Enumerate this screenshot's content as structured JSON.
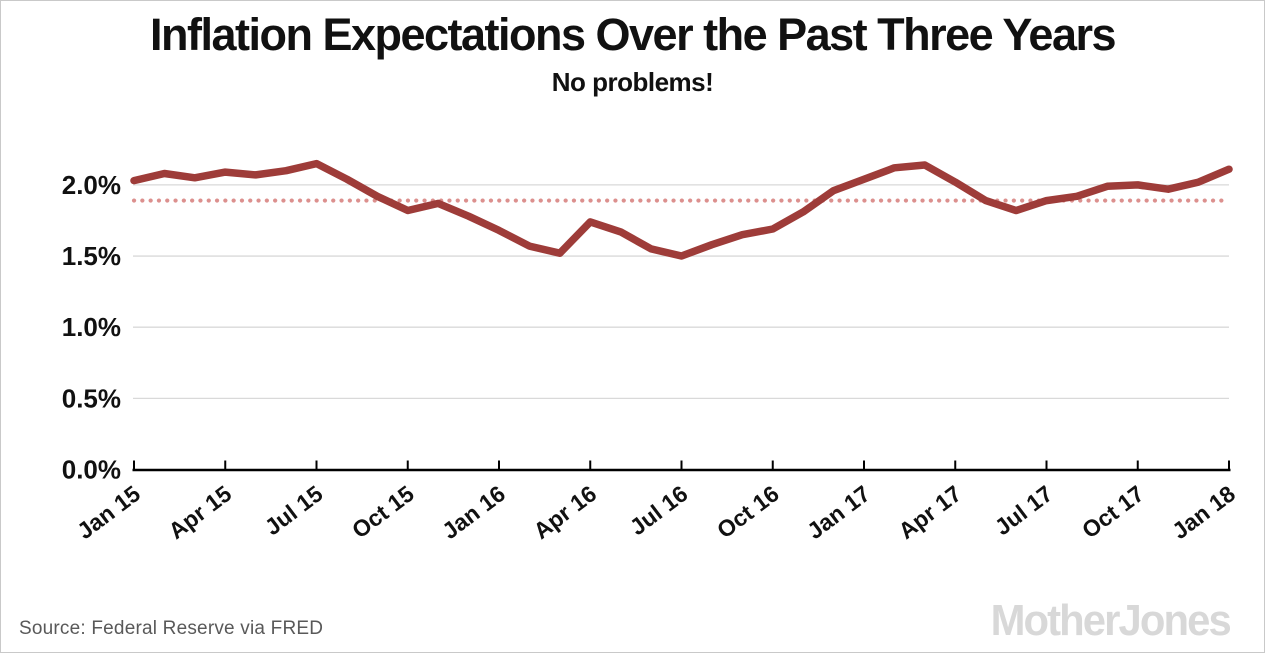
{
  "footer": {
    "source": "Source: Federal Reserve via FRED",
    "brand": "MotherJones"
  },
  "chart_data": {
    "type": "line",
    "title": "Inflation Expectations Over the Past Three Years",
    "subtitle": "No problems!",
    "grid": "horizontal",
    "legend_position": "none",
    "x_months": [
      "2015-01",
      "2015-02",
      "2015-03",
      "2015-04",
      "2015-05",
      "2015-06",
      "2015-07",
      "2015-08",
      "2015-09",
      "2015-10",
      "2015-11",
      "2015-12",
      "2016-01",
      "2016-02",
      "2016-03",
      "2016-04",
      "2016-05",
      "2016-06",
      "2016-07",
      "2016-08",
      "2016-09",
      "2016-10",
      "2016-11",
      "2016-12",
      "2017-01",
      "2017-02",
      "2017-03",
      "2017-04",
      "2017-05",
      "2017-06",
      "2017-07",
      "2017-08",
      "2017-09",
      "2017-10",
      "2017-11",
      "2017-12",
      "2018-01"
    ],
    "series": [
      {
        "name": "Inflation expectations (%)",
        "values": [
          2.03,
          2.08,
          2.05,
          2.09,
          2.07,
          2.1,
          2.15,
          2.04,
          1.92,
          1.82,
          1.87,
          1.78,
          1.68,
          1.57,
          1.52,
          1.74,
          1.67,
          1.55,
          1.5,
          1.58,
          1.65,
          1.69,
          1.81,
          1.96,
          2.04,
          2.12,
          2.14,
          2.02,
          1.89,
          1.82,
          1.89,
          1.92,
          1.99,
          2.0,
          1.97,
          2.02,
          2.11
        ]
      }
    ],
    "x_tick_labels": [
      "Jan 15",
      "Apr 15",
      "Jul 15",
      "Oct 15",
      "Jan 16",
      "Apr 16",
      "Jul 16",
      "Oct 16",
      "Jan 17",
      "Apr 17",
      "Jul 17",
      "Oct 17",
      "Jan 18"
    ],
    "x_tick_every_months": 3,
    "yticks": [
      {
        "label": "0.0%",
        "value": 0.0
      },
      {
        "label": "0.5%",
        "value": 0.5
      },
      {
        "label": "1.0%",
        "value": 1.0
      },
      {
        "label": "1.5%",
        "value": 1.5
      },
      {
        "label": "2.0%",
        "value": 2.0
      }
    ],
    "ylim": [
      0,
      2.3
    ],
    "reference_line": {
      "value": 1.89,
      "style": "dotted"
    },
    "colors": {
      "line": "#9e3c39",
      "reference": "#dc908e",
      "grid": "#d9d9d9",
      "axis": "#000000",
      "tick_label": "#111111",
      "source_text": "#595959",
      "brand": "#d8d8d8"
    }
  }
}
